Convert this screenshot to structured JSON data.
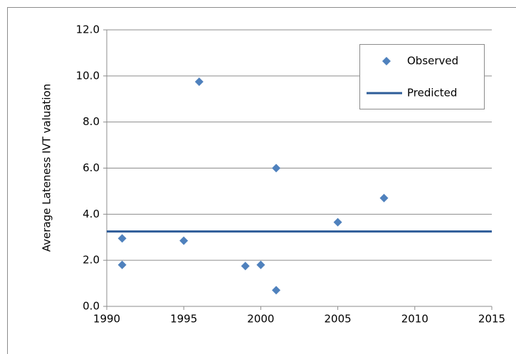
{
  "chart_data": {
    "type": "scatter",
    "y_label": "Average Lateness IVT valuation",
    "xlim": [
      1990,
      2015
    ],
    "xticks": [
      1990,
      1995,
      2000,
      2005,
      2010,
      2015
    ],
    "ylim": [
      0,
      12
    ],
    "yticks": [
      {
        "value": 0,
        "label": "0.0"
      },
      {
        "value": 2,
        "label": "2.0"
      },
      {
        "value": 4,
        "label": "4.0"
      },
      {
        "value": 6,
        "label": "6.0"
      },
      {
        "value": 8,
        "label": "8.0"
      },
      {
        "value": 10,
        "label": "10.0"
      },
      {
        "value": 12,
        "label": "12.0"
      }
    ],
    "grid": true,
    "legend": "upper right",
    "series": [
      {
        "name": "Observed",
        "mode": "markers",
        "color": "#4f81bd",
        "x": [
          1991,
          1991,
          1995,
          1996,
          1999,
          2000,
          2001,
          2001,
          2005,
          2008
        ],
        "values": [
          2.95,
          1.8,
          2.85,
          9.75,
          1.75,
          1.8,
          6.0,
          0.7,
          3.65,
          4.7
        ]
      },
      {
        "name": "Predicted",
        "mode": "line",
        "color": "#2e5c99",
        "x": [
          1990,
          2015
        ],
        "values": [
          3.25,
          3.25
        ]
      }
    ]
  }
}
